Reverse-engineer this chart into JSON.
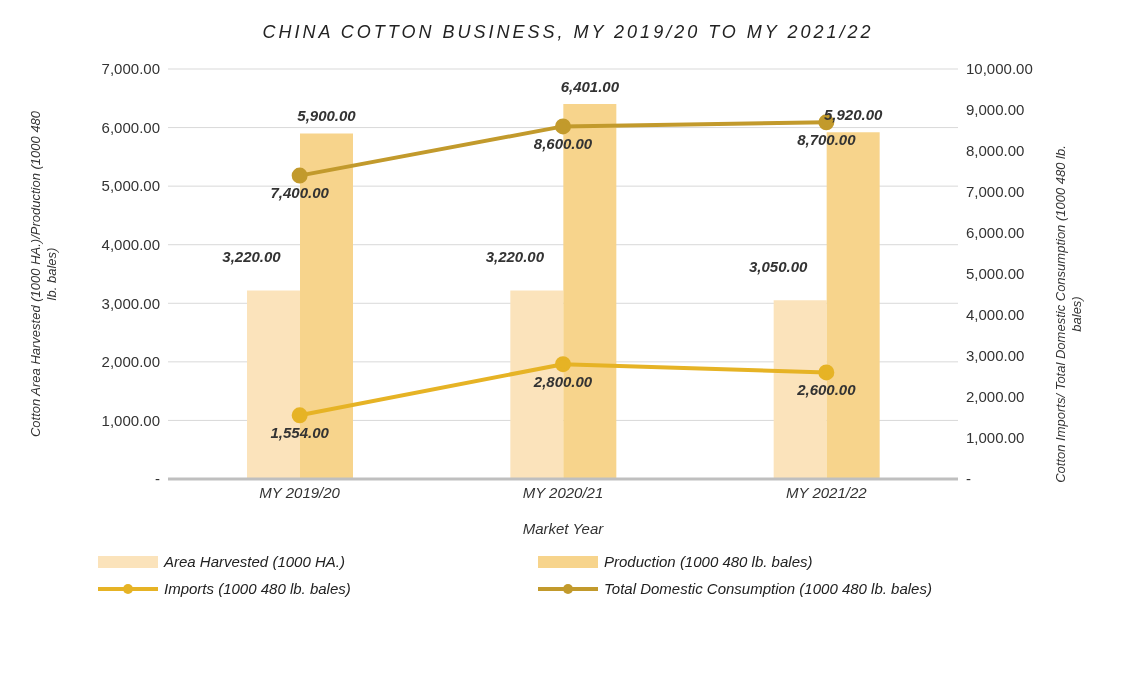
{
  "chart_data": {
    "type": "bar",
    "title": "CHINA COTTON BUSINESS, MY 2019/20 TO MY 2021/22",
    "xlabel": "Market Year",
    "ylabel": "Cotton Area Harvested (1000 HA.)/Production (1000 480 lb. bales)",
    "y2label": "Cotton Imports/ Total Domestic Consumption (1000 480 lb. bales)",
    "categories": [
      "MY 2019/20",
      "MY 2020/21",
      "MY 2021/22"
    ],
    "series": [
      {
        "name": "Area Harvested (1000 HA.)",
        "color": "#fbe3bb",
        "values": [
          3220,
          3220,
          3050
        ],
        "value_labels": [
          "3,220.00",
          "3,220.00",
          "3,050.00"
        ]
      },
      {
        "name": "Production (1000 480 lb. bales)",
        "color": "#f7d48c",
        "values": [
          5900,
          6401,
          5920
        ],
        "value_labels": [
          "5,900.00",
          "6,401.00",
          "5,920.00"
        ]
      },
      {
        "name": "Imports (1000 480 lb. bales)",
        "type": "line",
        "axis": "y2",
        "color": "#e6b325",
        "values": [
          1554,
          2800,
          2600
        ],
        "value_labels": [
          "1,554.00",
          "2,800.00",
          "2,600.00"
        ]
      },
      {
        "name": "Total Domestic Consumption (1000 480 lb. bales)",
        "type": "line",
        "axis": "y2",
        "color": "#c29a2c",
        "values": [
          7400,
          8600,
          8700
        ],
        "value_labels": [
          "7,400.00",
          "8,600.00",
          "8,700.00"
        ]
      }
    ],
    "ylim": [
      0,
      7000
    ],
    "yticks": [
      {
        "value": 0,
        "label": "-"
      },
      {
        "value": 1000,
        "label": "1,000.00"
      },
      {
        "value": 2000,
        "label": "2,000.00"
      },
      {
        "value": 3000,
        "label": "3,000.00"
      },
      {
        "value": 4000,
        "label": "4,000.00"
      },
      {
        "value": 5000,
        "label": "5,000.00"
      },
      {
        "value": 6000,
        "label": "6,000.00"
      },
      {
        "value": 7000,
        "label": "7,000.00"
      }
    ],
    "y2lim": [
      0,
      10000
    ],
    "y2ticks": [
      {
        "value": 0,
        "label": "-"
      },
      {
        "value": 1000,
        "label": "1,000.00"
      },
      {
        "value": 2000,
        "label": "2,000.00"
      },
      {
        "value": 3000,
        "label": "3,000.00"
      },
      {
        "value": 4000,
        "label": "4,000.00"
      },
      {
        "value": 5000,
        "label": "5,000.00"
      },
      {
        "value": 6000,
        "label": "6,000.00"
      },
      {
        "value": 7000,
        "label": "7,000.00"
      },
      {
        "value": 8000,
        "label": "8,000.00"
      },
      {
        "value": 9000,
        "label": "9,000.00"
      },
      {
        "value": 10000,
        "label": "10,000.00"
      }
    ],
    "grid": "y",
    "legend": "bottom",
    "marker": "circle",
    "line_style": "solid"
  }
}
